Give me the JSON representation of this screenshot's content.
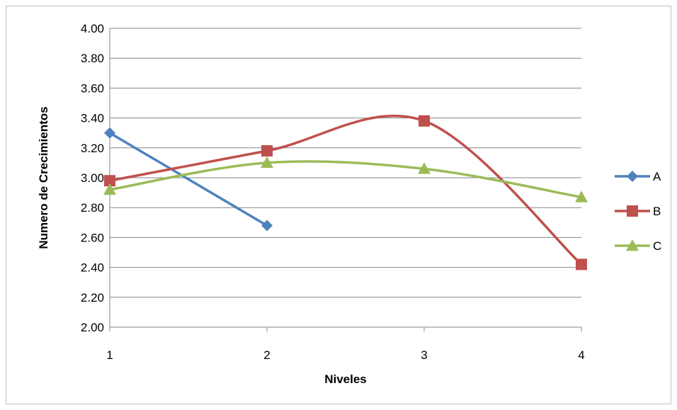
{
  "chart_data": {
    "type": "line",
    "title": "",
    "xlabel": "Niveles",
    "ylabel": "Numero de Crecimientos",
    "categories": [
      "1",
      "2",
      "3",
      "4"
    ],
    "ylim": [
      2.0,
      4.0
    ],
    "yticks": [
      "2.00",
      "2.20",
      "2.40",
      "2.60",
      "2.80",
      "3.00",
      "3.20",
      "3.40",
      "3.60",
      "3.80",
      "4.00"
    ],
    "grid": true,
    "smooth": true,
    "legend_position": "right",
    "series": [
      {
        "name": "A",
        "color": "#4f81bd",
        "marker": "diamond",
        "values": [
          3.3,
          2.68,
          null,
          null
        ]
      },
      {
        "name": "B",
        "color": "#c0504d",
        "marker": "square",
        "values": [
          2.98,
          3.18,
          3.38,
          2.42
        ]
      },
      {
        "name": "C",
        "color": "#9bbb59",
        "marker": "triangle",
        "values": [
          2.92,
          3.1,
          3.06,
          2.87
        ]
      }
    ]
  }
}
